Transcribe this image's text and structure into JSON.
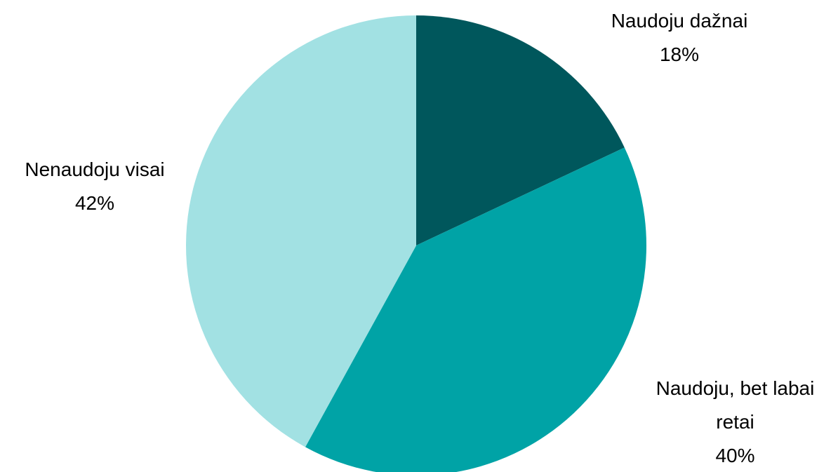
{
  "chart_data": {
    "type": "pie",
    "categories": [
      "Naudoju dažnai",
      "Naudoju, bet labai retai",
      "Nenaudoju visai"
    ],
    "values": [
      18,
      40,
      42
    ],
    "value_labels": [
      "18%",
      "40%",
      "42%"
    ],
    "colors": [
      "#00575c",
      "#00a3a6",
      "#a2e1e3"
    ]
  }
}
